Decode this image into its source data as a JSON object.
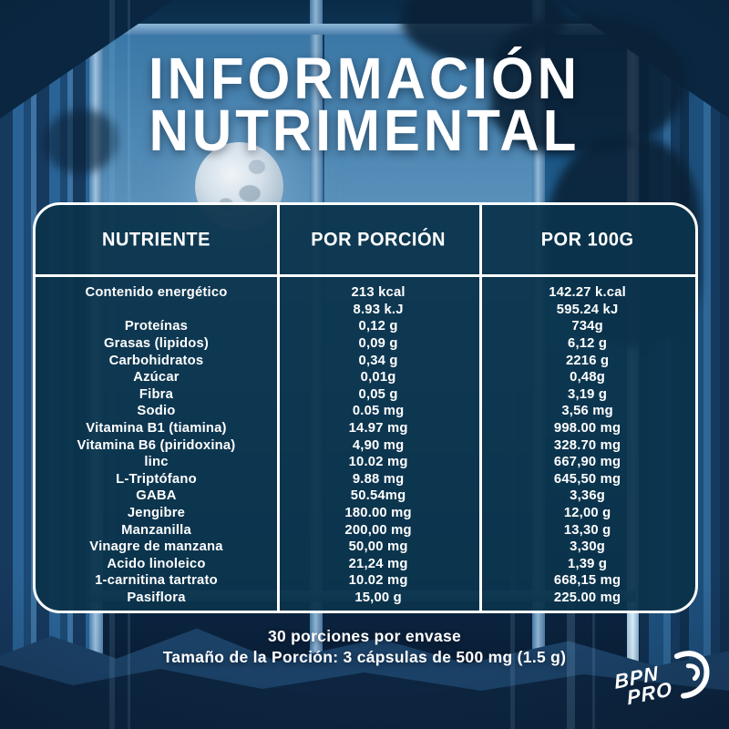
{
  "title": {
    "line1": "INFORMACIÓN",
    "line2": "NUTRIMENTAL"
  },
  "table": {
    "headers": [
      "NUTRIENTE",
      "POR PORCIÓN",
      "POR 100G"
    ],
    "rows": [
      {
        "nutrient": "Contenido energético",
        "per_serving": "213 kcal",
        "per_100g": "142.27 k.cal"
      },
      {
        "nutrient": "",
        "per_serving": "8.93 k.J",
        "per_100g": "595.24 kJ"
      },
      {
        "nutrient": "Proteínas",
        "per_serving": "0,12 g",
        "per_100g": "734g"
      },
      {
        "nutrient": "Grasas (lipidos)",
        "per_serving": "0,09 g",
        "per_100g": "6,12 g"
      },
      {
        "nutrient": "Carbohidratos",
        "per_serving": "0,34 g",
        "per_100g": "2216 g"
      },
      {
        "nutrient": "Azúcar",
        "per_serving": "0,01g",
        "per_100g": "0,48g"
      },
      {
        "nutrient": "Fibra",
        "per_serving": "0,05 g",
        "per_100g": "3,19 g"
      },
      {
        "nutrient": "Sodio",
        "per_serving": "0.05 mg",
        "per_100g": "3,56 mg"
      },
      {
        "nutrient": "Vitamina B1 (tiamina)",
        "per_serving": "14.97 mg",
        "per_100g": "998.00 mg"
      },
      {
        "nutrient": "Vitamina B6 (piridoxina)",
        "per_serving": "4,90 mg",
        "per_100g": "328.70 mg"
      },
      {
        "nutrient": "linc",
        "per_serving": "10.02 mg",
        "per_100g": "667,90 mg"
      },
      {
        "nutrient": "L-Triptófano",
        "per_serving": "9.88 mg",
        "per_100g": "645,50 mg"
      },
      {
        "nutrient": "GABA",
        "per_serving": "50.54mg",
        "per_100g": "3,36g"
      },
      {
        "nutrient": "Jengibre",
        "per_serving": "180.00 mg",
        "per_100g": "12,00 g"
      },
      {
        "nutrient": "Manzanilla",
        "per_serving": "200,00 mg",
        "per_100g": "13,30 g"
      },
      {
        "nutrient": "Vinagre de manzana",
        "per_serving": "50,00 mg",
        "per_100g": "3,30g"
      },
      {
        "nutrient": "Acido linoleico",
        "per_serving": "21,24 mg",
        "per_100g": "1,39 g"
      },
      {
        "nutrient": "1-carnitina tartrato",
        "per_serving": "10.02 mg",
        "per_100g": "668,15 mg"
      },
      {
        "nutrient": "Pasiflora",
        "per_serving": "15,00 g",
        "per_100g": "225.00 mg"
      }
    ]
  },
  "footer": {
    "line1": "30 porciones por envase",
    "line2": "Tamaño de la Porción: 3 cápsulas de 500 mg (1.5 g)"
  },
  "logo": {
    "line1": "BPN",
    "line2": "PRO"
  },
  "colors": {
    "panel_bg": "#0b334b",
    "border_white": "#ffffff",
    "text_white": "#ffffff",
    "sky_blue": "#2d74a8",
    "night_navy": "#081a2e"
  }
}
